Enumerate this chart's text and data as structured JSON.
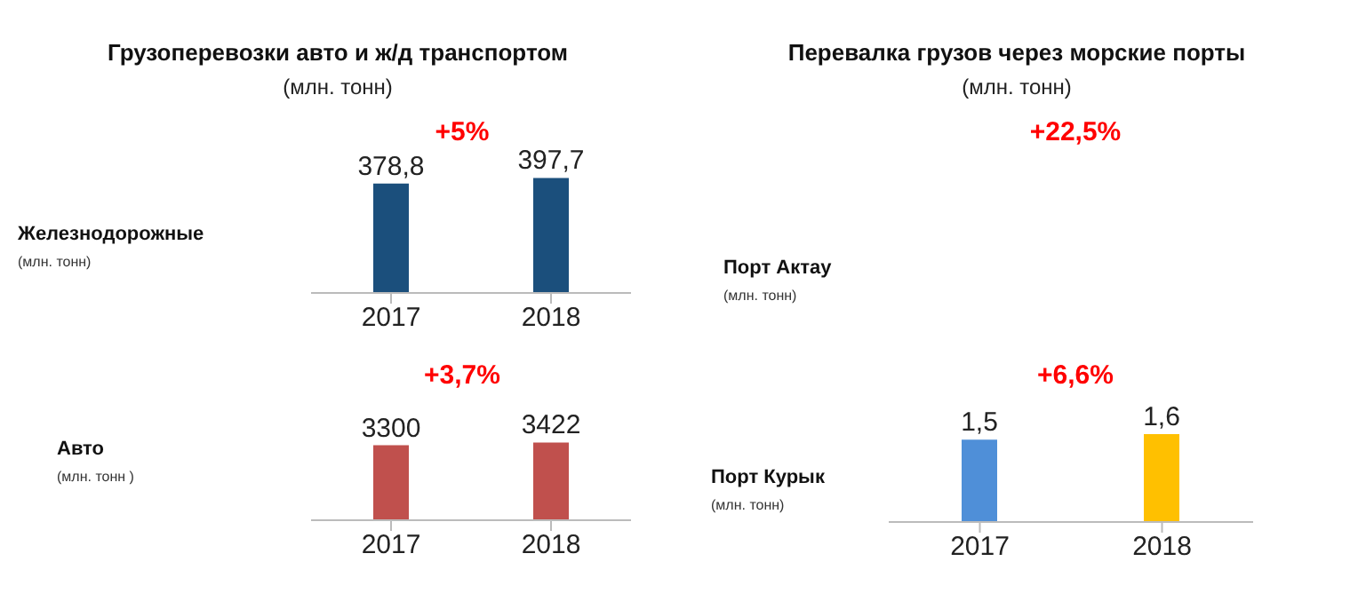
{
  "chart_data": [
    {
      "type": "bar",
      "title": "Грузоперевозки авто  и ж/д транспортом",
      "subtitle": "(млн. тонн)",
      "ylabel": "Железнодорожные",
      "annotations": [
        "+5%",
        "(млн. тонн)"
      ],
      "categories": [
        "2017",
        "2018"
      ],
      "values": [
        378.8,
        397.7
      ],
      "value_labels": [
        "378,8",
        "397,7"
      ],
      "colors": [
        "#1b4f7c",
        "#1b4f7c"
      ]
    },
    {
      "type": "other",
      "title": "Перевалка грузов через морские порты",
      "subtitle": "(млн. тонн)",
      "ylabel": "Порт Актау",
      "annotations": [
        "+22,5%",
        "(млн. тонн)"
      ]
    },
    {
      "type": "bar",
      "ylabel": "Авто",
      "annotations": [
        "+3,7%",
        "(млн. тонн )"
      ],
      "categories": [
        "2017",
        "2018"
      ],
      "values": [
        3300,
        3422
      ],
      "value_labels": [
        "3300",
        "3422"
      ],
      "colors": [
        "#c0504d",
        "#c0504d"
      ]
    },
    {
      "type": "bar",
      "ylabel": "Порт Курык",
      "annotations": [
        "+6,6%",
        "(млн. тонн)"
      ],
      "categories": [
        "2017",
        "2018"
      ],
      "values": [
        1.5,
        1.6
      ],
      "value_labels": [
        "1,5",
        "1,6"
      ],
      "colors": [
        "#4f8fd8",
        "#ffc000"
      ]
    }
  ]
}
